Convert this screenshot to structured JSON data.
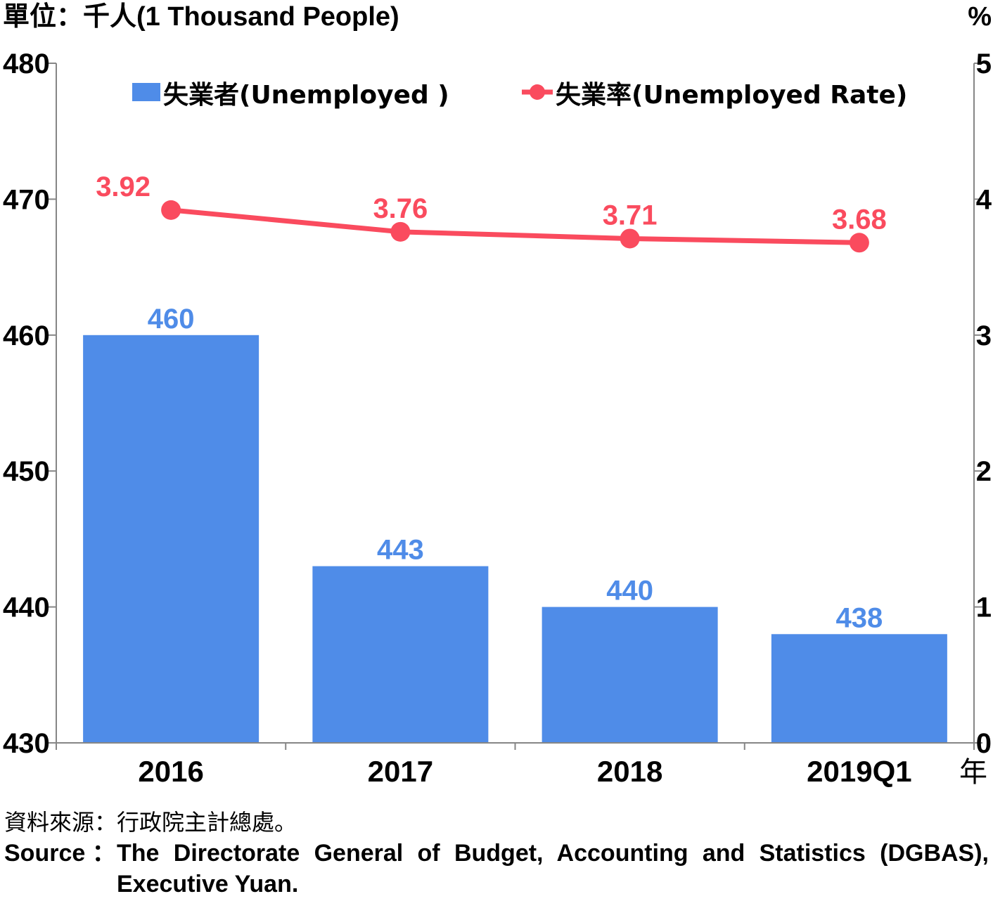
{
  "chart_data": {
    "type": "bar",
    "categories": [
      "2016",
      "2017",
      "2018",
      "2019Q1"
    ],
    "series": [
      {
        "name": "失業者(Unemployed )",
        "kind": "bar",
        "axis": "left",
        "values": [
          460,
          443,
          440,
          438
        ]
      },
      {
        "name": "失業率(Unemployed Rate)",
        "kind": "line",
        "axis": "right",
        "values": [
          3.92,
          3.76,
          3.71,
          3.68
        ]
      }
    ],
    "left_axis": {
      "label": "單位：千人(1 Thousand People)",
      "range": [
        430,
        480
      ],
      "ticks": [
        430,
        440,
        450,
        460,
        470,
        480
      ]
    },
    "right_axis": {
      "label": "%",
      "range": [
        0,
        5
      ],
      "ticks": [
        0,
        1,
        2,
        3,
        4,
        5
      ]
    },
    "xlabel": "年",
    "legend_position": "top",
    "grid": false,
    "bar_labels": [
      "460",
      "443",
      "440",
      "438"
    ],
    "line_labels": [
      "3.92",
      "3.76",
      "3.71",
      "3.68"
    ],
    "colors": {
      "bar": "#4f8ce8",
      "line": "#fa4b5e",
      "axis": "#868686",
      "text": "#000000"
    }
  },
  "source": {
    "chinese": "資料來源：行政院主計總處。",
    "label": "Source ：",
    "english": "The Directorate General of Budget, Accounting and Statistics (DGBAS), Executive Yuan."
  }
}
